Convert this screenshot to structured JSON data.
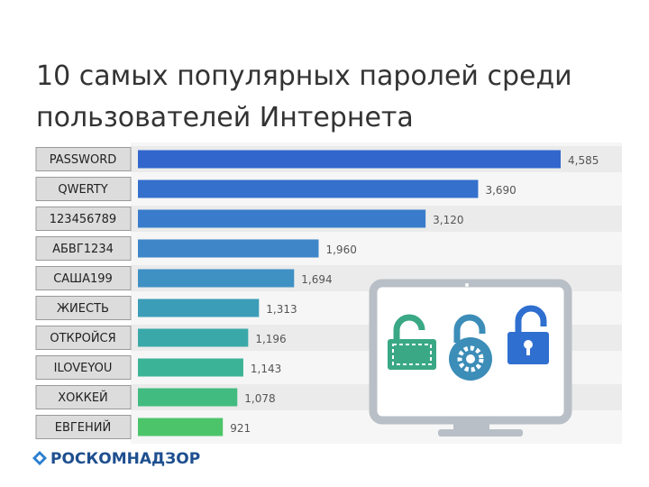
{
  "title": "10 самых популярных паролей среди пользователей Интернета",
  "chart_data": {
    "type": "bar",
    "orientation": "horizontal",
    "categories": [
      "PASSWORD",
      "QWERTY",
      "123456789",
      "АБВГ1234",
      "САША199",
      "ЖИЕСТЬ",
      "ОТКРОЙСЯ",
      "ILOVEYOU",
      "ХОККЕЙ",
      "ЕВГЕНИЙ"
    ],
    "values": [
      4585,
      3690,
      3120,
      1960,
      1694,
      1313,
      1196,
      1143,
      1078,
      921
    ],
    "value_labels": [
      "4,585",
      "3,690",
      "3,120",
      "1,960",
      "1,694",
      "1,313",
      "1,196",
      "1,143",
      "1,078",
      "921"
    ],
    "colors": [
      "#3266cc",
      "#3470cc",
      "#3a7ccb",
      "#3e86c8",
      "#3f90c3",
      "#3c9db8",
      "#3aa8a8",
      "#3bb397",
      "#42bb80",
      "#4cc46a"
    ]
  },
  "footer": {
    "logo_text": "РОСКОМНАДЗОР"
  }
}
